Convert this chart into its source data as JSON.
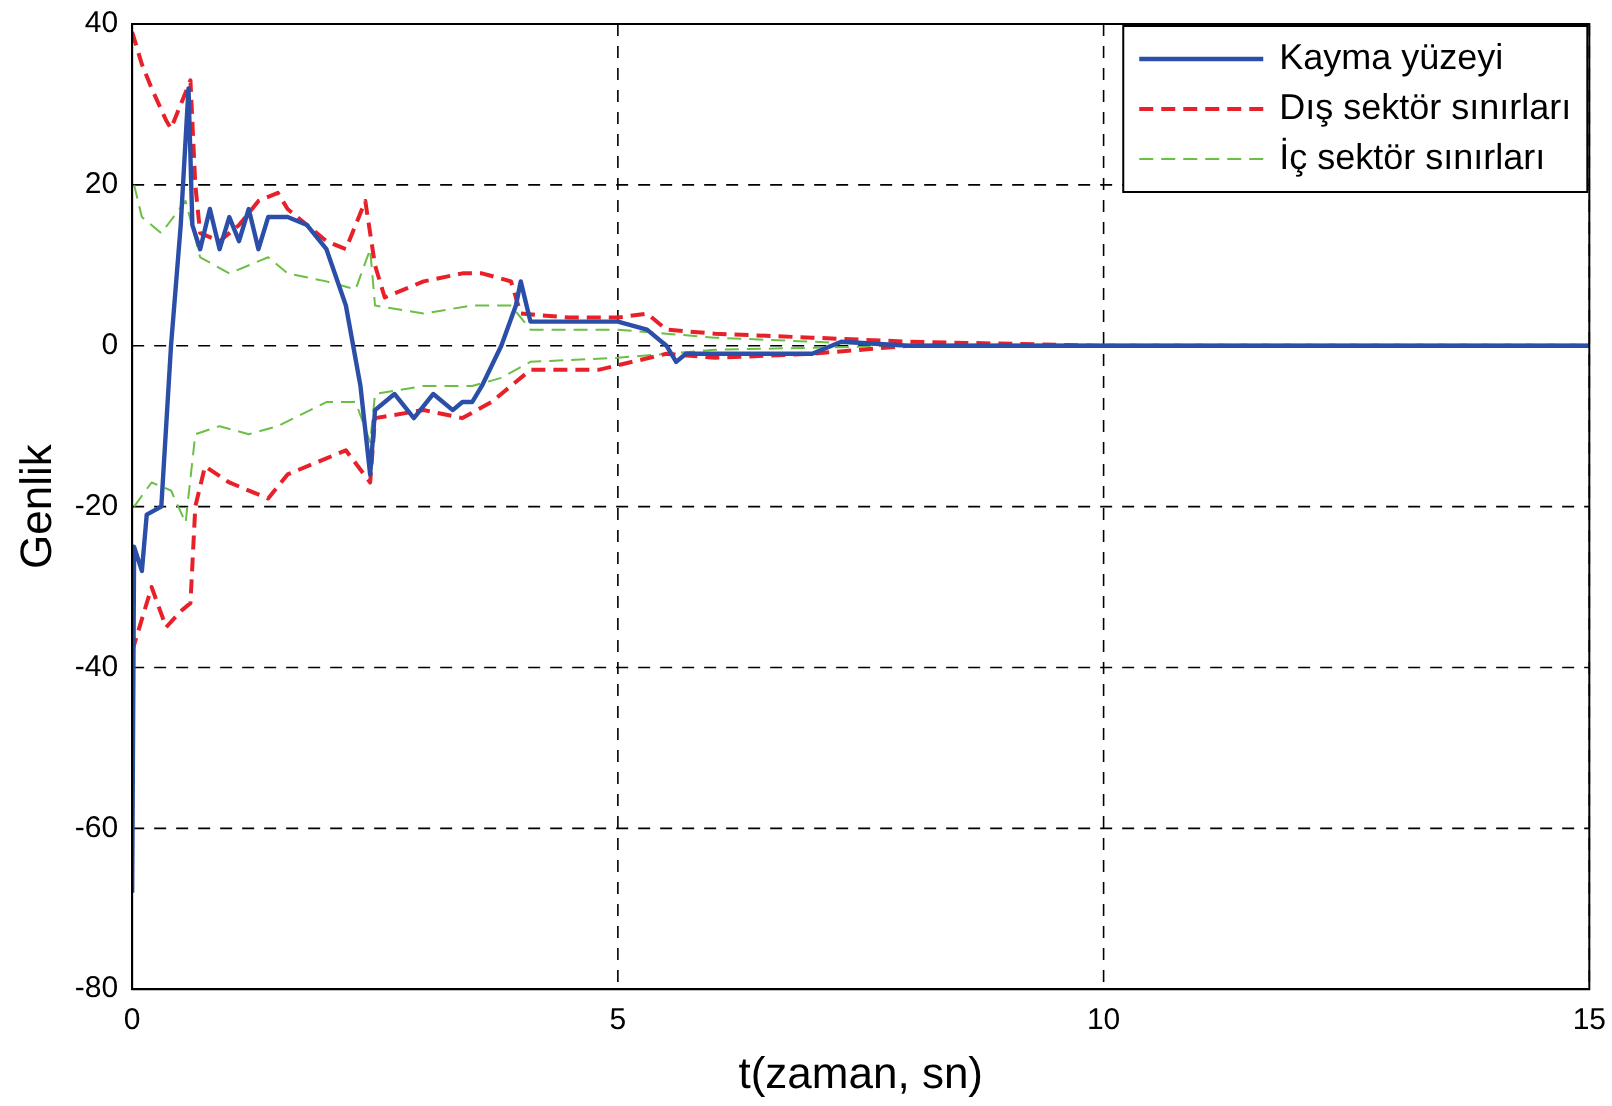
{
  "chart_data": {
    "type": "line",
    "xlabel": "t(zaman, sn)",
    "ylabel": "Genlik",
    "xlim": [
      0,
      15
    ],
    "ylim": [
      -80,
      40
    ],
    "xticks": [
      0,
      5,
      10,
      15
    ],
    "yticks": [
      -80,
      -60,
      -40,
      -20,
      0,
      20,
      40
    ],
    "grid": true,
    "legend": "top right",
    "marker": "none",
    "series": [
      {
        "name": "Kayma yüzeyi",
        "color": "#2b4fa8",
        "line_style": "solid",
        "x": [
          0,
          0.02,
          0.1,
          0.15,
          0.3,
          0.4,
          0.5,
          0.58,
          0.62,
          0.7,
          0.8,
          0.9,
          1.0,
          1.1,
          1.2,
          1.3,
          1.4,
          1.5,
          1.6,
          1.8,
          2.0,
          2.2,
          2.35,
          2.45,
          2.5,
          2.7,
          2.9,
          3.1,
          3.3,
          3.4,
          3.5,
          3.6,
          3.8,
          3.95,
          4.0,
          4.1,
          4.5,
          5.0,
          5.3,
          5.5,
          5.6,
          5.7,
          6.5,
          7.0,
          7.3,
          8,
          10,
          15
        ],
        "values": [
          -68,
          -25,
          -28,
          -21,
          -20,
          0,
          15,
          32,
          15,
          12,
          17,
          12,
          16,
          13,
          17,
          12,
          16,
          16,
          16,
          15,
          12,
          5,
          -5,
          -16,
          -8,
          -6,
          -9,
          -6,
          -8,
          -7,
          -7,
          -5,
          0,
          5,
          8,
          3,
          3,
          3,
          2,
          0,
          -2,
          -1,
          -1,
          -1,
          0.5,
          0,
          0,
          0
        ]
      },
      {
        "name": "Dış sektör sınırları",
        "color": "#e8202a",
        "line_style": "dashed",
        "x": [
          0,
          0.1,
          0.2,
          0.35,
          0.4,
          0.5,
          0.6,
          0.65,
          0.7,
          0.9,
          1.1,
          1.3,
          1.5,
          1.6,
          1.8,
          2.0,
          2.2,
          2.4,
          2.5,
          2.6,
          3.0,
          3.4,
          3.6,
          3.9,
          4.0,
          4.5,
          5.0,
          5.3,
          5.5,
          6,
          7,
          8,
          10,
          15
        ],
        "values": [
          39,
          35,
          32,
          28,
          27,
          30,
          33,
          20,
          14,
          13,
          15,
          18,
          19,
          17,
          15,
          13,
          12,
          18,
          10,
          6,
          8,
          9,
          9,
          8,
          4,
          3.5,
          3.5,
          4,
          2,
          1.5,
          1,
          0.5,
          0,
          0
        ]
      },
      {
        "color": "#e8202a",
        "line_style": "dashed",
        "x": [
          0,
          0.2,
          0.35,
          0.5,
          0.6,
          0.65,
          0.75,
          1.0,
          1.4,
          1.6,
          2.0,
          2.2,
          2.45,
          2.5,
          3.0,
          3.4,
          3.7,
          4.1,
          4.8,
          5.5,
          6,
          7,
          8,
          15
        ],
        "values": [
          -38,
          -30,
          -35,
          -33,
          -32,
          -20,
          -15,
          -17,
          -19,
          -16,
          -14,
          -13,
          -17,
          -9,
          -8,
          -9,
          -7,
          -3,
          -3,
          -1,
          -1.5,
          -1,
          0,
          0
        ]
      },
      {
        "name": "İç sektör sınırları",
        "color": "#6abf45",
        "line_style": "dashed",
        "x": [
          0.02,
          0.1,
          0.3,
          0.55,
          0.7,
          1.0,
          1.4,
          1.6,
          2.0,
          2.3,
          2.45,
          2.5,
          3.0,
          3.5,
          3.9,
          4.1,
          5,
          5.5,
          6,
          7,
          8,
          15
        ],
        "values": [
          20,
          16,
          14,
          18,
          11,
          9,
          11,
          9,
          8,
          7,
          12,
          5,
          4,
          5,
          5,
          2,
          2,
          1.5,
          1,
          0.5,
          0,
          0
        ]
      },
      {
        "color": "#6abf45",
        "line_style": "dashed",
        "x": [
          0.02,
          0.2,
          0.4,
          0.55,
          0.65,
          0.9,
          1.2,
          1.5,
          2.0,
          2.3,
          2.45,
          2.5,
          3.0,
          3.5,
          3.8,
          4.1,
          5,
          6,
          8,
          15
        ],
        "values": [
          -20,
          -17,
          -18,
          -22,
          -11,
          -10,
          -11,
          -10,
          -7,
          -7,
          -12,
          -6,
          -5,
          -5,
          -4,
          -2,
          -1.5,
          -0.5,
          0,
          0
        ]
      }
    ]
  }
}
